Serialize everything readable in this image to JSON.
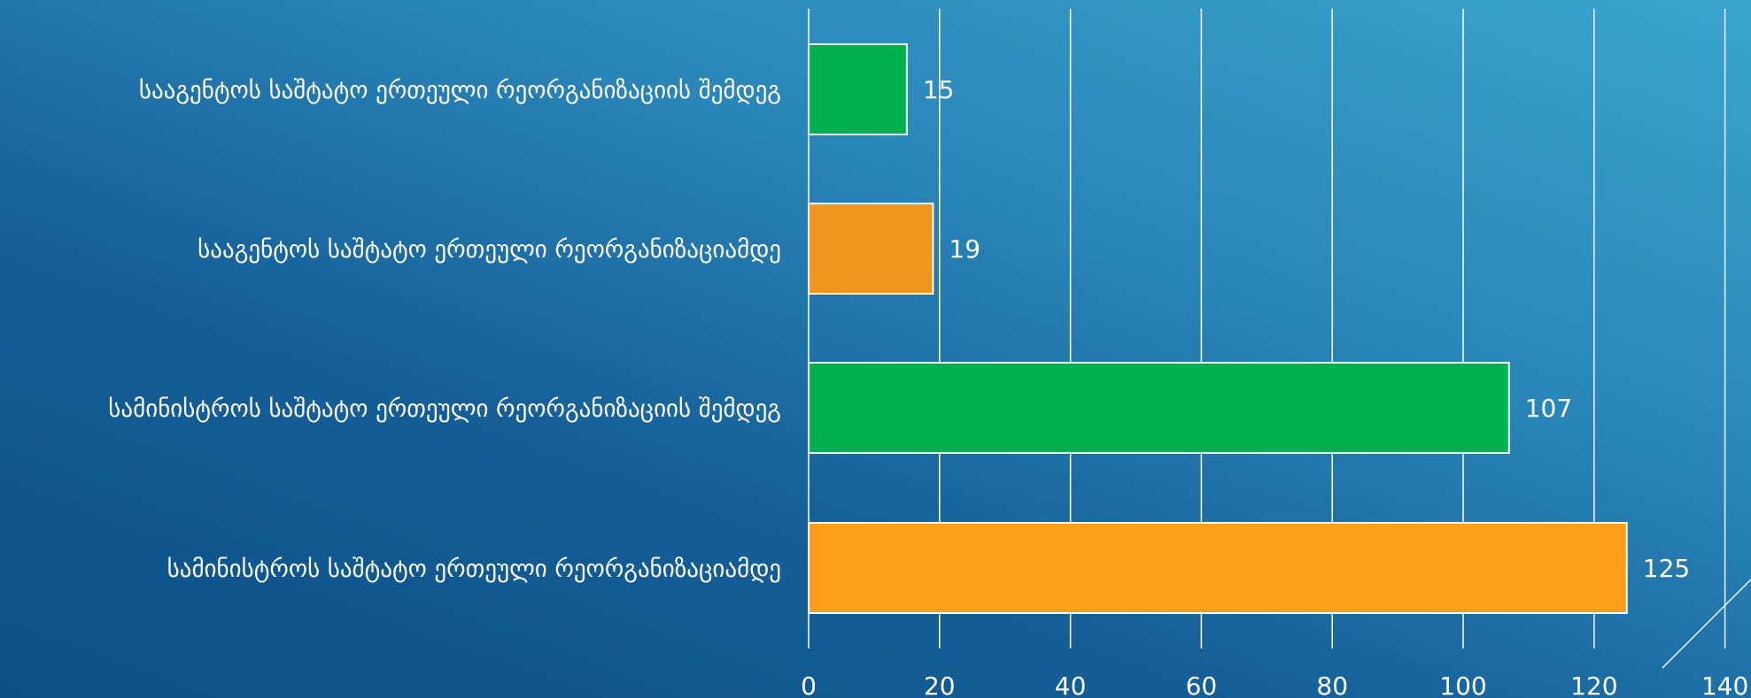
{
  "chart_data": {
    "type": "bar",
    "orientation": "horizontal",
    "categories": [
      "სააგენტოს საშტატო ერთეული რეორგანიზაციის შემდეგ",
      "სააგენტოს საშტატო ერთეული რეორგანიზაციამდე",
      "სამინისტროს საშტატო ერთეული რეორგანიზაციის შემდეგ",
      "სამინისტროს საშტატო ერთეული რეორგანიზაციამდე"
    ],
    "values": [
      15,
      19,
      107,
      125
    ],
    "bar_colors": [
      "#00b050",
      "#f0961e",
      "#00b050",
      "#ff9e1a"
    ],
    "xlim": [
      0,
      140
    ],
    "x_ticks": [
      0,
      20,
      40,
      60,
      80,
      100,
      120,
      140
    ],
    "grid": "vertical",
    "data_labels": true,
    "title": "",
    "xlabel": "",
    "ylabel": ""
  }
}
